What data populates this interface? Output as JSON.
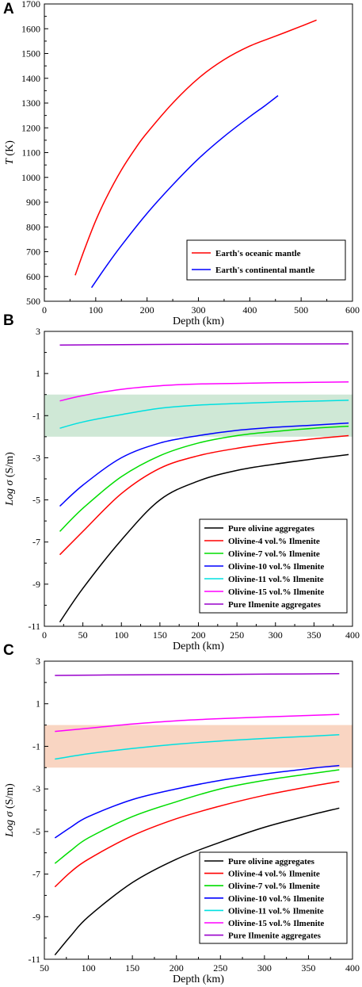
{
  "chart_data": [
    {
      "type": "line",
      "panel_label": "A",
      "xlabel": "Depth (km)",
      "ylabel_italic": "T",
      "ylabel_rest": " (K)",
      "xlim": [
        0,
        600
      ],
      "ylim": [
        500,
        1700
      ],
      "xticks": [
        0,
        100,
        200,
        300,
        400,
        500,
        600
      ],
      "yticks": [
        500,
        600,
        700,
        800,
        900,
        1000,
        1100,
        1200,
        1300,
        1400,
        1500,
        1600,
        1700
      ],
      "legend_position": "bottom-right",
      "series": [
        {
          "name": "Earth's oceanic mantle",
          "color": "#ff0000",
          "x": [
            60,
            80,
            100,
            120,
            150,
            180,
            200,
            250,
            300,
            350,
            400,
            450,
            500,
            530
          ],
          "y": [
            605,
            720,
            825,
            915,
            1030,
            1125,
            1180,
            1300,
            1400,
            1475,
            1530,
            1570,
            1610,
            1635
          ]
        },
        {
          "name": "Earth's continental mantle",
          "color": "#0000ff",
          "x": [
            92,
            120,
            150,
            200,
            250,
            300,
            350,
            400,
            430,
            455
          ],
          "y": [
            555,
            640,
            725,
            855,
            970,
            1075,
            1165,
            1245,
            1290,
            1330
          ]
        }
      ]
    },
    {
      "type": "line",
      "panel_label": "B",
      "xlabel": "Depth (km)",
      "ylabel_italic": "Log σ",
      "ylabel_rest": " (S/m)",
      "xlim": [
        0,
        400
      ],
      "ylim": [
        -11,
        3
      ],
      "xticks": [
        0,
        50,
        100,
        150,
        200,
        250,
        300,
        350,
        400
      ],
      "yticks": [
        -11,
        -9,
        -7,
        -5,
        -3,
        -1,
        1,
        3
      ],
      "shaded_band": {
        "y": [
          -2,
          0
        ],
        "color": "#cfe8d6"
      },
      "legend_position": "bottom-right",
      "series": [
        {
          "name": "Pure olivine aggregates",
          "color": "#000000",
          "x": [
            20,
            50,
            100,
            150,
            200,
            250,
            300,
            350,
            395
          ],
          "y": [
            -10.8,
            -9.2,
            -6.9,
            -5.0,
            -4.1,
            -3.6,
            -3.3,
            -3.05,
            -2.85
          ]
        },
        {
          "name": "Olivine-4 vol.% Ilmenite",
          "color": "#ff0000",
          "x": [
            20,
            50,
            100,
            150,
            200,
            250,
            300,
            350,
            395
          ],
          "y": [
            -7.6,
            -6.5,
            -4.7,
            -3.5,
            -2.9,
            -2.55,
            -2.3,
            -2.1,
            -1.95
          ]
        },
        {
          "name": "Olivine-7 vol.% Ilmenite",
          "color": "#00dd00",
          "x": [
            20,
            50,
            100,
            150,
            200,
            250,
            300,
            350,
            395
          ],
          "y": [
            -6.5,
            -5.4,
            -3.9,
            -2.9,
            -2.3,
            -1.95,
            -1.75,
            -1.6,
            -1.5
          ]
        },
        {
          "name": "Olivine-10 vol.% Ilmenite",
          "color": "#0000ff",
          "x": [
            20,
            50,
            100,
            150,
            200,
            250,
            300,
            350,
            395
          ],
          "y": [
            -5.3,
            -4.3,
            -3.0,
            -2.3,
            -1.95,
            -1.7,
            -1.55,
            -1.45,
            -1.35
          ]
        },
        {
          "name": "Olivine-11 vol.% Ilmenite",
          "color": "#00e0e0",
          "x": [
            20,
            50,
            100,
            150,
            200,
            250,
            300,
            350,
            395
          ],
          "y": [
            -1.6,
            -1.3,
            -0.95,
            -0.65,
            -0.5,
            -0.42,
            -0.36,
            -0.31,
            -0.27
          ]
        },
        {
          "name": "Olivine-15 vol.% Ilmenite",
          "color": "#ff00ff",
          "x": [
            20,
            50,
            100,
            150,
            200,
            250,
            300,
            350,
            395
          ],
          "y": [
            -0.3,
            -0.05,
            0.25,
            0.42,
            0.5,
            0.53,
            0.56,
            0.58,
            0.6
          ]
        },
        {
          "name": "Pure Ilmenite aggregates",
          "color": "#9900cc",
          "x": [
            20,
            100,
            200,
            300,
            395
          ],
          "y": [
            2.35,
            2.37,
            2.39,
            2.4,
            2.41
          ]
        }
      ]
    },
    {
      "type": "line",
      "panel_label": "C",
      "xlabel": "Depth (km)",
      "ylabel_italic": "Log σ",
      "ylabel_rest": " (S/m)",
      "xlim": [
        50,
        400
      ],
      "ylim": [
        -11,
        3
      ],
      "xticks": [
        50,
        100,
        150,
        200,
        250,
        300,
        350,
        400
      ],
      "yticks": [
        -11,
        -9,
        -7,
        -5,
        -3,
        -1,
        1,
        3
      ],
      "shaded_band": {
        "y": [
          -2,
          0
        ],
        "color": "#f9d5c2"
      },
      "legend_position": "bottom-right",
      "series": [
        {
          "name": "Pure olivine aggregates",
          "color": "#000000",
          "x": [
            62,
            80,
            100,
            150,
            200,
            250,
            300,
            350,
            385
          ],
          "y": [
            -10.8,
            -9.9,
            -9.0,
            -7.4,
            -6.3,
            -5.5,
            -4.8,
            -4.25,
            -3.9
          ]
        },
        {
          "name": "Olivine-4 vol.% Ilmenite",
          "color": "#ff0000",
          "x": [
            62,
            80,
            100,
            150,
            200,
            250,
            300,
            350,
            385
          ],
          "y": [
            -7.6,
            -6.9,
            -6.3,
            -5.2,
            -4.4,
            -3.8,
            -3.3,
            -2.9,
            -2.65
          ]
        },
        {
          "name": "Olivine-7 vol.% Ilmenite",
          "color": "#00dd00",
          "x": [
            62,
            80,
            100,
            150,
            200,
            250,
            300,
            350,
            385
          ],
          "y": [
            -6.5,
            -5.9,
            -5.3,
            -4.3,
            -3.6,
            -3.0,
            -2.6,
            -2.3,
            -2.1
          ]
        },
        {
          "name": "Olivine-10 vol.% Ilmenite",
          "color": "#0000ff",
          "x": [
            62,
            80,
            100,
            150,
            200,
            250,
            300,
            350,
            385
          ],
          "y": [
            -5.3,
            -4.8,
            -4.3,
            -3.5,
            -3.0,
            -2.6,
            -2.3,
            -2.05,
            -1.9
          ]
        },
        {
          "name": "Olivine-11 vol.% Ilmenite",
          "color": "#00e0e0",
          "x": [
            62,
            100,
            150,
            200,
            250,
            300,
            350,
            385
          ],
          "y": [
            -1.6,
            -1.35,
            -1.1,
            -0.9,
            -0.75,
            -0.63,
            -0.53,
            -0.45
          ]
        },
        {
          "name": "Olivine-15 vol.% Ilmenite",
          "color": "#ff00ff",
          "x": [
            62,
            100,
            150,
            200,
            250,
            300,
            350,
            385
          ],
          "y": [
            -0.3,
            -0.15,
            0.05,
            0.2,
            0.3,
            0.38,
            0.45,
            0.5
          ]
        },
        {
          "name": "Pure Ilmenite aggregates",
          "color": "#9900cc",
          "x": [
            62,
            150,
            250,
            385
          ],
          "y": [
            2.33,
            2.36,
            2.38,
            2.41
          ]
        }
      ]
    }
  ]
}
